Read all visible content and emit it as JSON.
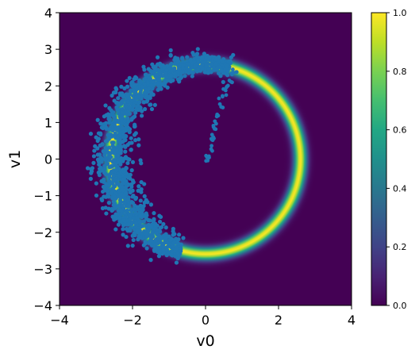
{
  "chart_data": {
    "type": "heatmap",
    "title": "",
    "xlabel": "v0",
    "ylabel": "v1",
    "xlim": [
      -4,
      4
    ],
    "ylim": [
      -4,
      4
    ],
    "xticks": [
      -4,
      -2,
      0,
      2,
      4
    ],
    "yticks": [
      -4,
      -3,
      -2,
      -1,
      0,
      1,
      2,
      3,
      4
    ],
    "xtick_labels": [
      "−4",
      "−2",
      "0",
      "2",
      "4"
    ],
    "ytick_labels": [
      "−4",
      "−3",
      "−2",
      "−1",
      "0",
      "1",
      "2",
      "3",
      "4"
    ],
    "grid": false,
    "heatmap": {
      "description_shape": "ring",
      "center": [
        0.0,
        0.0
      ],
      "ring_radius": 2.6,
      "ring_width_sigma": 0.12,
      "colormap": "viridis",
      "vmin": 0.0,
      "vmax": 1.0
    },
    "colorbar": {
      "ticks": [
        0.0,
        0.2,
        0.4,
        0.6,
        0.8,
        1.0
      ],
      "tick_labels": [
        "0.0",
        "0.2",
        "0.4",
        "0.6",
        "0.8",
        "1.0"
      ]
    },
    "scatter": {
      "color": "#1f77b4",
      "arc_cluster": {
        "radius_mean": 2.6,
        "radius_spread": 0.18,
        "angle_start_deg": 255,
        "angle_end_deg": 75,
        "approx_points": 1400
      },
      "trail": [
        [
          0.03,
          0.03
        ],
        [
          0.1,
          0.1
        ],
        [
          0.15,
          0.3
        ],
        [
          0.2,
          0.45
        ],
        [
          0.22,
          0.6
        ],
        [
          0.25,
          0.8
        ],
        [
          0.3,
          1.0
        ],
        [
          0.35,
          1.2
        ],
        [
          0.42,
          1.45
        ],
        [
          0.48,
          1.65
        ],
        [
          0.55,
          1.85
        ],
        [
          0.6,
          2.0
        ],
        [
          0.65,
          2.15
        ],
        [
          0.72,
          2.3
        ],
        [
          0.8,
          2.4
        ]
      ]
    }
  }
}
